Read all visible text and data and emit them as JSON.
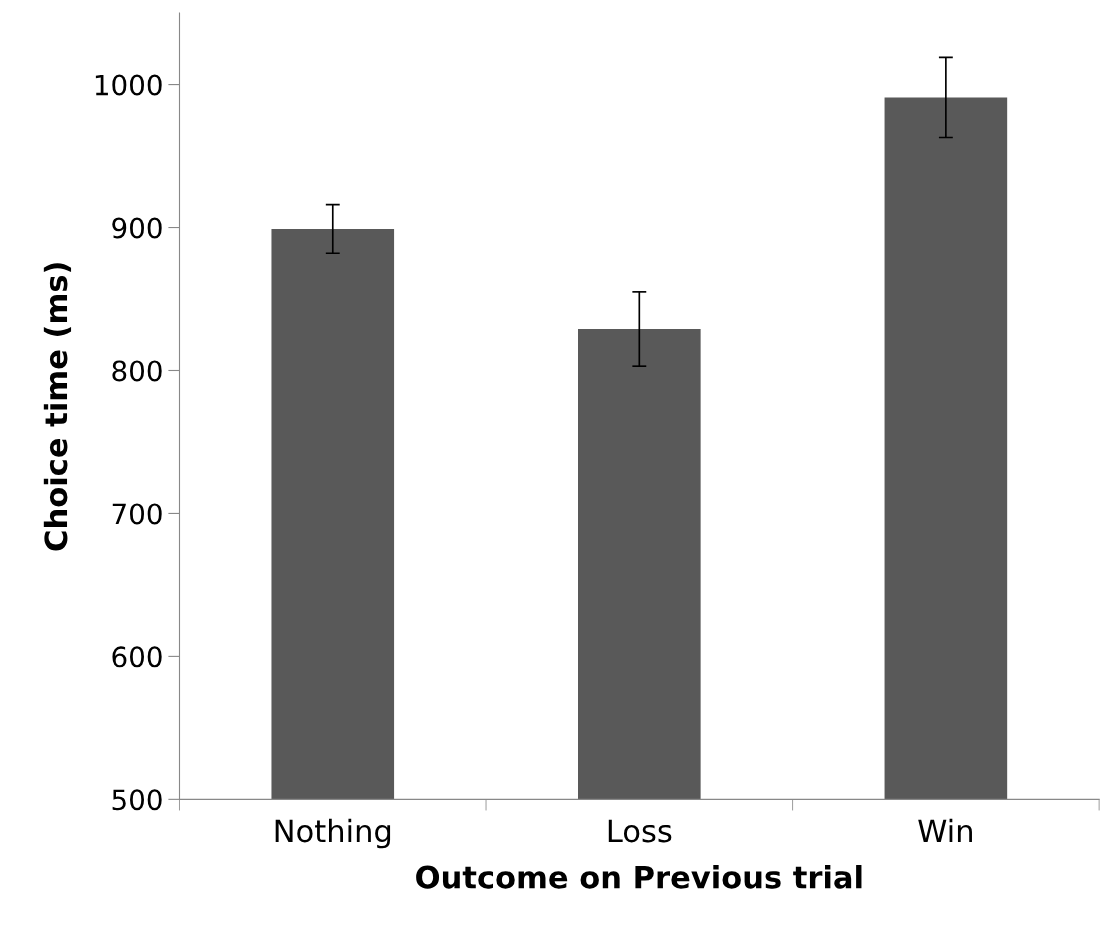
{
  "chart_data": {
    "type": "bar",
    "xlabel": "Outcome on Previous trial",
    "ylabel": "Choice time (ms)",
    "categories": [
      "Nothing",
      "Loss",
      "Win"
    ],
    "values": [
      899,
      829,
      991
    ],
    "errors": [
      17,
      26,
      28
    ],
    "color": "#595959",
    "ylim": [
      500,
      1050
    ],
    "yticks": [
      500,
      600,
      700,
      800,
      900,
      1000
    ],
    "grid": false
  }
}
